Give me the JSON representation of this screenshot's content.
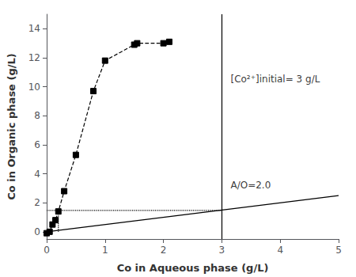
{
  "chart_data": {
    "type": "line",
    "x_label": "Co in Aqueous phase (g/L)",
    "y_label": "Co in Organic phase (g/L)",
    "xlim": [
      0,
      5
    ],
    "ylim": [
      -0.5,
      15
    ],
    "xticks": [
      0,
      1,
      2,
      3,
      4,
      5
    ],
    "yticks": [
      0,
      2,
      4,
      6,
      8,
      10,
      12,
      14
    ],
    "grid": false,
    "series": [
      {
        "type": "line",
        "x": [
          0.0,
          0.05,
          0.1,
          0.15,
          0.2,
          0.3,
          0.5,
          0.8,
          1.0,
          1.5,
          1.55,
          2.0,
          2.1
        ],
        "values": [
          -0.1,
          0.0,
          0.5,
          0.8,
          1.4,
          2.8,
          5.3,
          9.7,
          11.8,
          12.9,
          13.0,
          13.0,
          13.1
        ],
        "color": "black",
        "marker": "square",
        "line_style": "dashed"
      },
      {
        "type": "line",
        "x": [
          0.0,
          5.0
        ],
        "values": [
          0.0,
          2.5
        ],
        "color": "black",
        "line_style": "solid"
      },
      {
        "type": "vline",
        "x": [
          3.0
        ],
        "color": "black",
        "line_style": "solid"
      },
      {
        "type": "line",
        "x": [
          0.0,
          3.0
        ],
        "values": [
          1.47,
          1.47
        ],
        "color": "black",
        "line_style": "dotted"
      },
      {
        "type": "line",
        "x": [
          0.2,
          0.2
        ],
        "values": [
          0.0,
          1.47
        ],
        "color": "black",
        "line_style": "dotted"
      }
    ],
    "annotations": [
      {
        "text": "[Co²⁺]initial= 3 g/L",
        "x": 3.15,
        "y": 10.5
      },
      {
        "text": "A/O=2.0",
        "x": 3.15,
        "y": 3.2
      }
    ]
  }
}
